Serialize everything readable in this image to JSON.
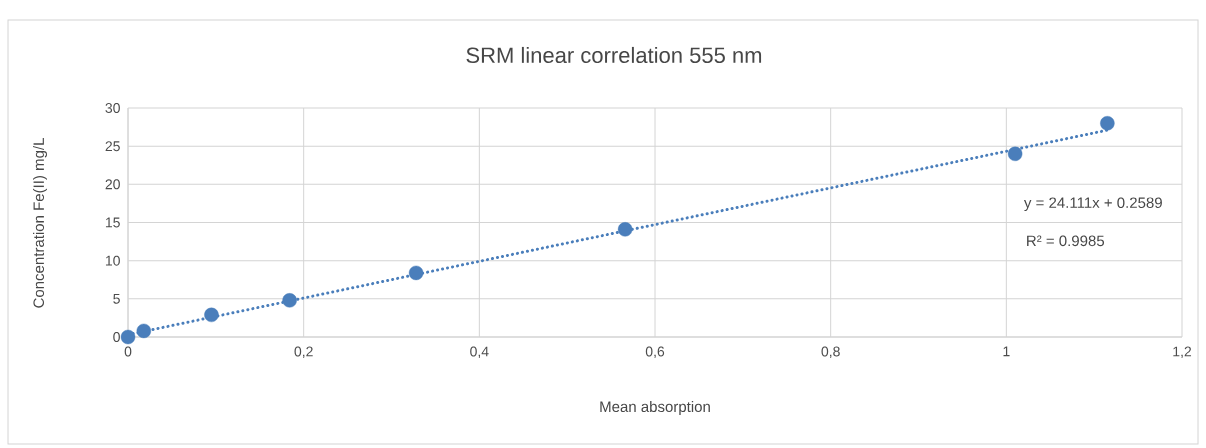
{
  "chart_data": {
    "type": "scatter",
    "title": "SRM linear correlation 555 nm",
    "xlabel": "Mean absorption",
    "ylabel": "Concentration Fe(II) mg/L",
    "xlim": [
      0,
      1.2
    ],
    "ylim": [
      0,
      30
    ],
    "xticks": [
      0,
      {
        "value": 0.2,
        "label": "0,2"
      },
      {
        "value": 0.4,
        "label": "0,4"
      },
      {
        "value": 0.6,
        "label": "0,6"
      },
      {
        "value": 0.8,
        "label": "0,8"
      },
      1,
      {
        "value": 1.2,
        "label": "1,2"
      }
    ],
    "yticks": [
      0,
      5,
      10,
      15,
      20,
      25,
      30
    ],
    "grid": true,
    "series": [
      {
        "color": "#4a7ebb",
        "x": [
          0,
          0.018,
          0.095,
          0.184,
          0.328,
          0.566,
          1.01,
          1.115
        ],
        "values": [
          0,
          0.8,
          2.9,
          4.8,
          8.4,
          14.1,
          24.0,
          28.0
        ]
      },
      {
        "type": "line",
        "color": "#4a7ebb",
        "line_style": "dotted",
        "x": [
          0,
          1.115
        ],
        "values": [
          0.3,
          27.1
        ]
      }
    ],
    "annotations": [
      "y = 24.111x + 0.2589",
      "R² = 0.9985"
    ]
  }
}
